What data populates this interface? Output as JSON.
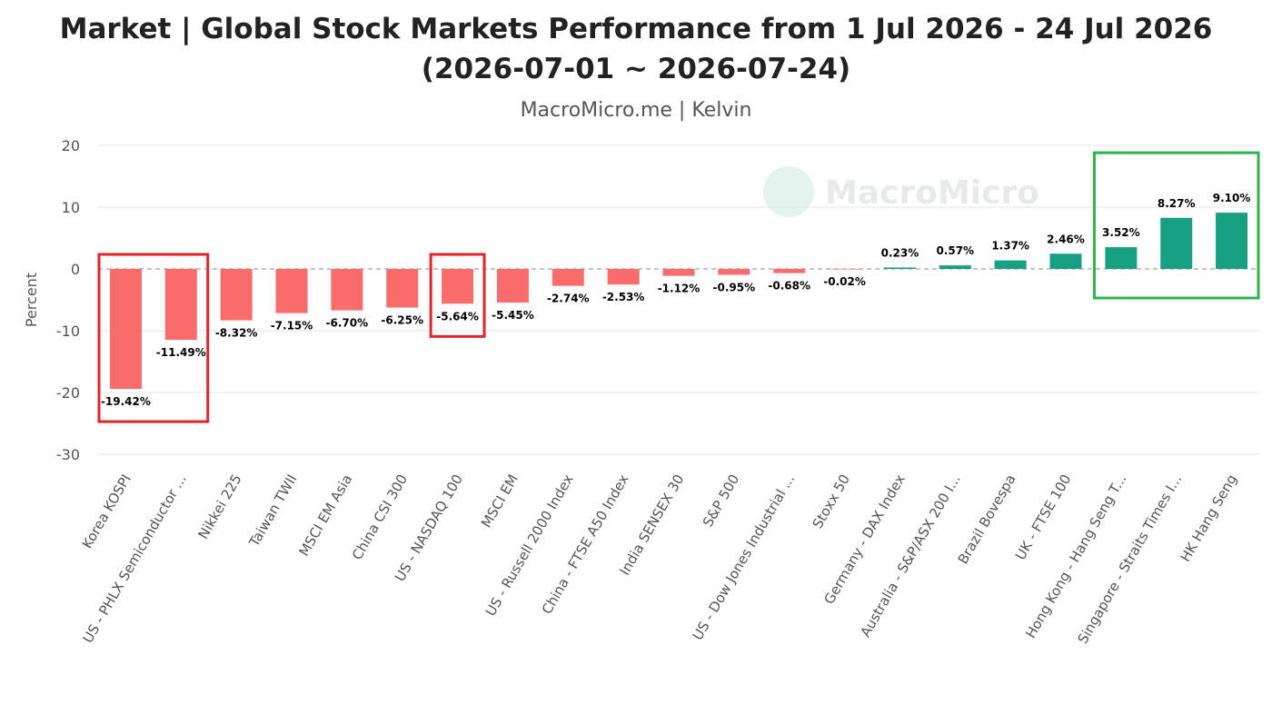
{
  "chart_data": {
    "type": "bar",
    "title_line1": "Market | Global Stock Markets Performance from 1 Jul 2026 - 24 Jul 2026",
    "title_line2": "(2026-07-01 ~ 2026-07-24)",
    "subtitle": "MacroMicro.me | Kelvin",
    "ylabel": "Percent",
    "xlabel": "",
    "ylim": [
      -30,
      20
    ],
    "yticks": [
      20,
      10,
      0,
      -10,
      -20,
      -30
    ],
    "grid": true,
    "watermark": "MacroMicro",
    "categories": [
      "Korea KOSPI",
      "US - PHLX Semiconductor ...",
      "Nikkei 225",
      "Taiwan TWII",
      "MSCI EM Asia",
      "China CSI 300",
      "US - NASDAQ 100",
      "MSCI EM",
      "US - Russell 2000 Index",
      "China - FTSE A50 Index",
      "India SENSEX 30",
      "S&P 500",
      "US - Dow Jones Industrial ...",
      "Stoxx 50",
      "Germany - DAX Index",
      "Australia - S&P/ASX 200 I...",
      "Brazil Bovespa",
      "UK - FTSE 100",
      "Hong Kong - Hang Seng T...",
      "Singapore - Straits Times I...",
      "HK Hang Seng"
    ],
    "values": [
      -19.42,
      -11.49,
      -8.32,
      -7.15,
      -6.7,
      -6.25,
      -5.64,
      -5.45,
      -2.74,
      -2.53,
      -1.12,
      -0.95,
      -0.68,
      -0.02,
      0.23,
      0.57,
      1.37,
      2.46,
      3.52,
      8.27,
      9.1
    ],
    "value_labels": [
      "-19.42%",
      "-11.49%",
      "-8.32%",
      "-7.15%",
      "-6.70%",
      "-6.25%",
      "-5.64%",
      "-5.45%",
      "-2.74%",
      "-2.53%",
      "-1.12%",
      "-0.95%",
      "-0.68%",
      "-0.02%",
      "0.23%",
      "0.57%",
      "1.37%",
      "2.46%",
      "3.52%",
      "8.27%",
      "9.10%"
    ],
    "colors": {
      "negative": "#f96c6c",
      "positive": "#16a07f",
      "highlight_box_negative": "#e0242b",
      "highlight_box_positive": "#2fb34a"
    },
    "highlighted_groups": [
      {
        "color": "negative",
        "indices": [
          0,
          1
        ]
      },
      {
        "color": "negative",
        "indices": [
          6
        ]
      },
      {
        "color": "positive",
        "indices": [
          18,
          19,
          20
        ]
      }
    ]
  }
}
